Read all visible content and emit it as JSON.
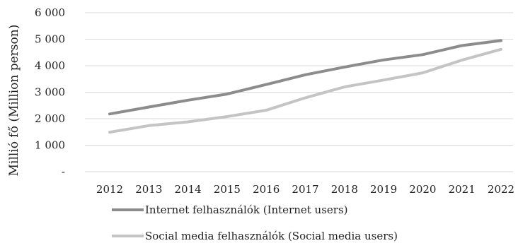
{
  "chart_data": {
    "type": "line",
    "title": "",
    "xlabel": "",
    "ylabel": "Millió fő (Million person)",
    "categories": [
      "2012",
      "2013",
      "2014",
      "2015",
      "2016",
      "2017",
      "2018",
      "2019",
      "2020",
      "2021",
      "2022"
    ],
    "ylim": [
      0,
      6000
    ],
    "yticks": [
      {
        "value": 0,
        "label": "-"
      },
      {
        "value": 1000,
        "label": "1 000"
      },
      {
        "value": 2000,
        "label": "2 000"
      },
      {
        "value": 3000,
        "label": "3 000"
      },
      {
        "value": 4000,
        "label": "4 000"
      },
      {
        "value": 5000,
        "label": "5 000"
      },
      {
        "value": 6000,
        "label": "6 000"
      }
    ],
    "grid": true,
    "legend": "bottom",
    "series": [
      {
        "name": "Internet felhasználók (Internet users)",
        "color": "#8c8c8c",
        "values": [
          2180,
          2440,
          2700,
          2930,
          3290,
          3660,
          3950,
          4220,
          4420,
          4760,
          4950
        ]
      },
      {
        "name": "Social media felhasználók (Social media users)",
        "color": "#c4c4c4",
        "values": [
          1490,
          1740,
          1880,
          2080,
          2320,
          2790,
          3200,
          3460,
          3730,
          4210,
          4620
        ]
      }
    ]
  }
}
